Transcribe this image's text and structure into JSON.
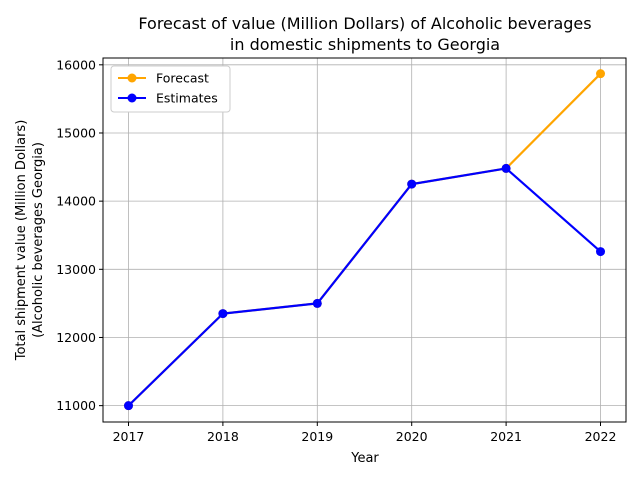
{
  "chart_data": {
    "type": "line",
    "title_lines": [
      "Forecast of value (Million Dollars) of Alcoholic beverages",
      "in domestic shipments to Georgia"
    ],
    "xlabel": "Year",
    "ylabel_lines": [
      "Total shipment value (Million Dollars)",
      "(Alcoholic beverages Georgia)"
    ],
    "x": [
      2017,
      2018,
      2019,
      2020,
      2021,
      2022
    ],
    "xlim": [
      2016.73,
      2022.27
    ],
    "ylim": [
      10760,
      16100
    ],
    "yticks": [
      11000,
      12000,
      13000,
      14000,
      15000,
      16000
    ],
    "grid": true,
    "legend_position": "top-left",
    "series": [
      {
        "name": "Forecast",
        "color": "#FFA500",
        "values": [
          11000,
          12350,
          12500,
          14250,
          14480,
          15870
        ]
      },
      {
        "name": "Estimates",
        "color": "#0000FF",
        "values": [
          11000,
          12350,
          12500,
          14250,
          14480,
          13260
        ]
      }
    ]
  }
}
